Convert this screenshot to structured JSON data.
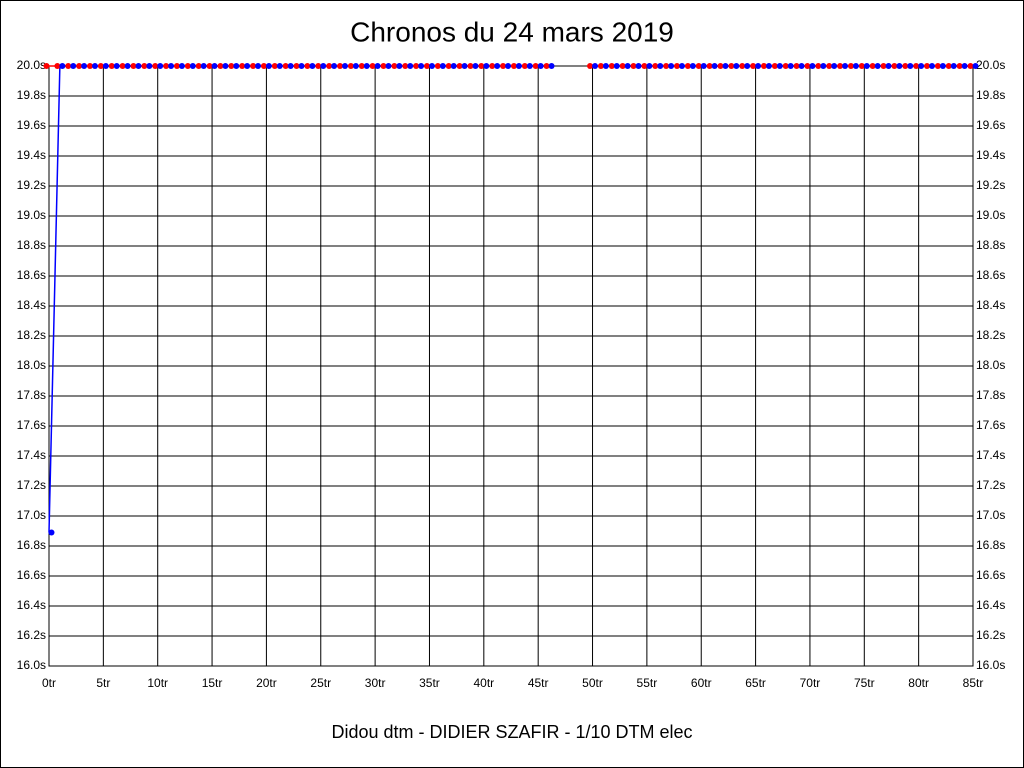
{
  "chart_data": {
    "type": "line",
    "title": "Chronos du 24 mars 2019",
    "subtitle": "Didou dtm - DIDIER SZAFIR - 1/10 DTM elec",
    "x": [
      0,
      1,
      2,
      3,
      4,
      5,
      6,
      7,
      8,
      9,
      10,
      11,
      12,
      13,
      14,
      15,
      16,
      17,
      18,
      19,
      20,
      21,
      22,
      23,
      24,
      25,
      26,
      27,
      28,
      29,
      30,
      31,
      32,
      33,
      34,
      35,
      36,
      37,
      38,
      39,
      40,
      41,
      42,
      43,
      44,
      45,
      46,
      47,
      48,
      49,
      50,
      51,
      52,
      53,
      54,
      55,
      56,
      57,
      58,
      59,
      60,
      61,
      62,
      63,
      64,
      65,
      66,
      67,
      68,
      69,
      70,
      71,
      72,
      73,
      74,
      75,
      76,
      77,
      78,
      79,
      80,
      81,
      82,
      83,
      84,
      85
    ],
    "series": [
      {
        "color": "#ff0000",
        "values": [
          20.0,
          20.0,
          20.0,
          20.0,
          20.0,
          20.0,
          20.0,
          20.0,
          20.0,
          20.0,
          20.0,
          20.0,
          20.0,
          20.0,
          20.0,
          20.0,
          20.0,
          20.0,
          20.0,
          20.0,
          20.0,
          20.0,
          20.0,
          20.0,
          20.0,
          20.0,
          20.0,
          20.0,
          20.0,
          20.0,
          20.0,
          20.0,
          20.0,
          20.0,
          20.0,
          20.0,
          20.0,
          20.0,
          20.0,
          20.0,
          20.0,
          20.0,
          20.0,
          20.0,
          20.0,
          20.0,
          20.0,
          null,
          null,
          null,
          20.0,
          20.0,
          20.0,
          20.0,
          20.0,
          20.0,
          20.0,
          20.0,
          20.0,
          20.0,
          20.0,
          20.0,
          20.0,
          20.0,
          20.0,
          20.0,
          20.0,
          20.0,
          20.0,
          20.0,
          20.0,
          20.0,
          20.0,
          20.0,
          20.0,
          20.0,
          20.0,
          20.0,
          20.0,
          20.0,
          20.0,
          20.0,
          20.0,
          20.0,
          20.0,
          20.0
        ]
      },
      {
        "color": "#0000ff",
        "values": [
          16.89,
          20.0,
          20.0,
          20.0,
          20.0,
          20.0,
          20.0,
          20.0,
          20.0,
          20.0,
          20.0,
          20.0,
          20.0,
          20.0,
          20.0,
          20.0,
          20.0,
          20.0,
          20.0,
          20.0,
          20.0,
          20.0,
          20.0,
          20.0,
          20.0,
          20.0,
          20.0,
          20.0,
          20.0,
          20.0,
          20.0,
          20.0,
          20.0,
          20.0,
          20.0,
          20.0,
          20.0,
          20.0,
          20.0,
          20.0,
          20.0,
          20.0,
          20.0,
          20.0,
          20.0,
          20.0,
          20.0,
          null,
          null,
          null,
          20.0,
          20.0,
          20.0,
          20.0,
          20.0,
          20.0,
          20.0,
          20.0,
          20.0,
          20.0,
          20.0,
          20.0,
          20.0,
          20.0,
          20.0,
          20.0,
          20.0,
          20.0,
          20.0,
          20.0,
          20.0,
          20.0,
          20.0,
          20.0,
          20.0,
          20.0,
          20.0,
          20.0,
          20.0,
          20.0,
          20.0,
          20.0,
          20.0,
          20.0,
          20.0,
          20.0
        ]
      }
    ],
    "xlim": [
      0,
      85
    ],
    "xticks": [
      {
        "value": 0,
        "label": "0tr"
      },
      {
        "value": 5,
        "label": "5tr"
      },
      {
        "value": 10,
        "label": "10tr"
      },
      {
        "value": 15,
        "label": "15tr"
      },
      {
        "value": 20,
        "label": "20tr"
      },
      {
        "value": 25,
        "label": "25tr"
      },
      {
        "value": 30,
        "label": "30tr"
      },
      {
        "value": 35,
        "label": "35tr"
      },
      {
        "value": 40,
        "label": "40tr"
      },
      {
        "value": 45,
        "label": "45tr"
      },
      {
        "value": 50,
        "label": "50tr"
      },
      {
        "value": 55,
        "label": "55tr"
      },
      {
        "value": 60,
        "label": "60tr"
      },
      {
        "value": 65,
        "label": "65tr"
      },
      {
        "value": 70,
        "label": "70tr"
      },
      {
        "value": 75,
        "label": "75tr"
      },
      {
        "value": 80,
        "label": "80tr"
      },
      {
        "value": 85,
        "label": "85tr"
      }
    ],
    "ylim": [
      16.0,
      20.0
    ],
    "yticks": [
      {
        "value": 16.0,
        "label": "16.0s"
      },
      {
        "value": 16.2,
        "label": "16.2s"
      },
      {
        "value": 16.4,
        "label": "16.4s"
      },
      {
        "value": 16.6,
        "label": "16.6s"
      },
      {
        "value": 16.8,
        "label": "16.8s"
      },
      {
        "value": 17.0,
        "label": "17.0s"
      },
      {
        "value": 17.2,
        "label": "17.2s"
      },
      {
        "value": 17.4,
        "label": "17.4s"
      },
      {
        "value": 17.6,
        "label": "17.6s"
      },
      {
        "value": 17.8,
        "label": "17.8s"
      },
      {
        "value": 18.0,
        "label": "18.0s"
      },
      {
        "value": 18.2,
        "label": "18.2s"
      },
      {
        "value": 18.4,
        "label": "18.4s"
      },
      {
        "value": 18.6,
        "label": "18.6s"
      },
      {
        "value": 18.8,
        "label": "18.8s"
      },
      {
        "value": 19.0,
        "label": "19.0s"
      },
      {
        "value": 19.2,
        "label": "19.2s"
      },
      {
        "value": 19.4,
        "label": "19.4s"
      },
      {
        "value": 19.6,
        "label": "19.6s"
      },
      {
        "value": 19.8,
        "label": "19.8s"
      },
      {
        "value": 20.0,
        "label": "20.0s"
      }
    ],
    "grid": true
  }
}
